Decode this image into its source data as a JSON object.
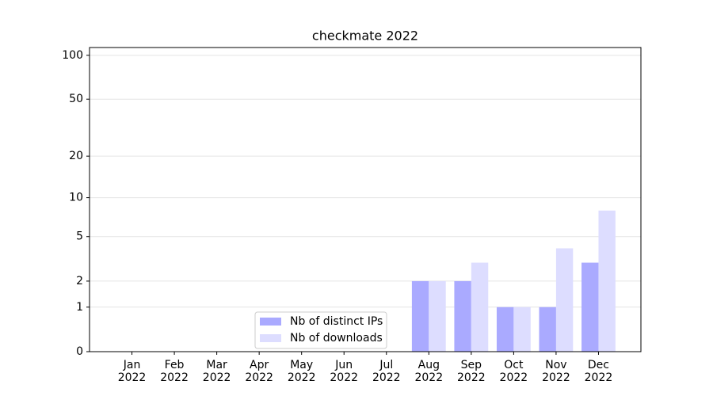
{
  "chart_data": {
    "type": "bar",
    "title": "checkmate 2022",
    "categories": [
      "Jan\n2022",
      "Feb\n2022",
      "Mar\n2022",
      "Apr\n2022",
      "May\n2022",
      "Jun\n2022",
      "Jul\n2022",
      "Aug\n2022",
      "Sep\n2022",
      "Oct\n2022",
      "Nov\n2022",
      "Dec\n2022"
    ],
    "series": [
      {
        "name": "Nb of distinct IPs",
        "color": "#aaaaff",
        "values": [
          0,
          0,
          0,
          0,
          0,
          0,
          0,
          2,
          2,
          1,
          1,
          3
        ]
      },
      {
        "name": "Nb of downloads",
        "color": "#ddddff",
        "values": [
          0,
          0,
          0,
          0,
          0,
          0,
          0,
          2,
          3,
          1,
          4,
          8
        ]
      }
    ],
    "yscale": "log1p",
    "ylim": [
      0,
      113
    ],
    "yticks": [
      0,
      1,
      2,
      5,
      10,
      20,
      50,
      100
    ],
    "grid": true,
    "legend": "lower center"
  }
}
